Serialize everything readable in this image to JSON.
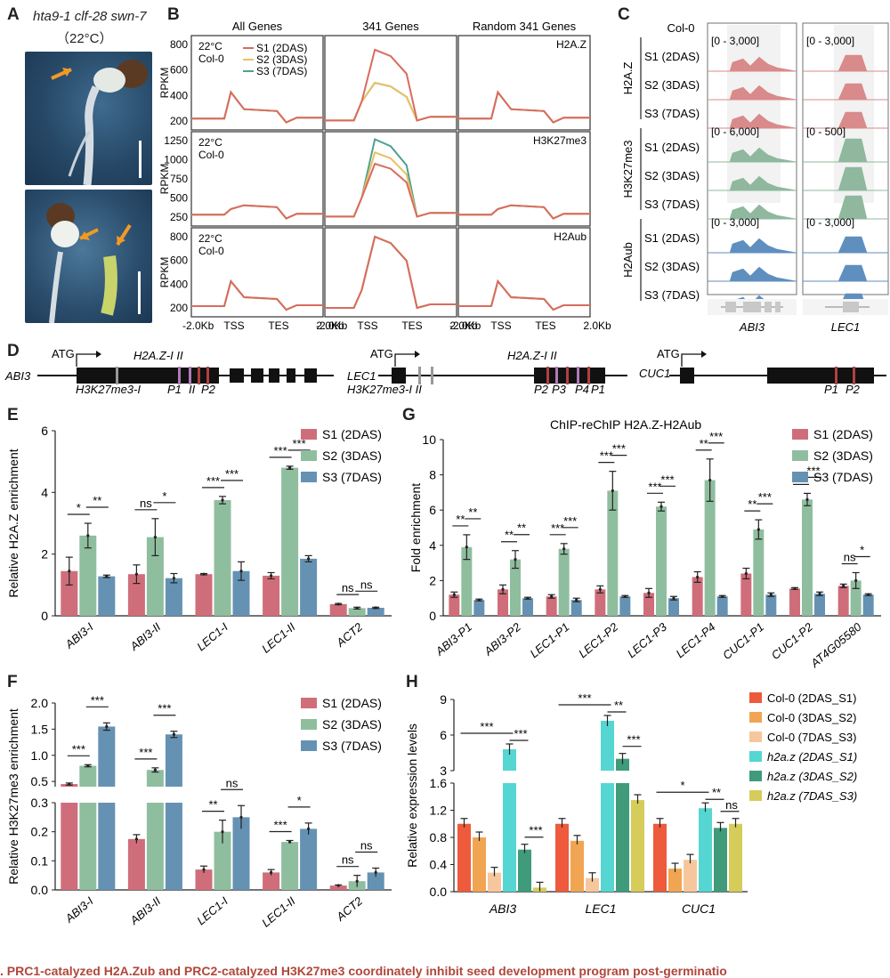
{
  "panelA": {
    "label": "A",
    "genotype": "hta9-1 clf-28 swn-7",
    "temp": "（22°C）"
  },
  "panelB": {
    "label": "B",
    "col_titles": [
      "All Genes",
      "341 Genes",
      "Random 341 Genes"
    ],
    "row_marks": [
      "H2A.Z",
      "H3K27me3",
      "H2Aub"
    ],
    "temp": "22°C",
    "genotype": "Col-0",
    "ylabel": "RPKM",
    "legend": [
      "S1 (2DAS)",
      "S2 (3DAS)",
      "S3 (7DAS)"
    ],
    "xticks": [
      "-2.0Kb",
      "TSS",
      "TES",
      "2.0Kb"
    ],
    "yticks": [
      [
        "800",
        "600",
        "400",
        "200"
      ],
      [
        "1250",
        "1000",
        "750",
        "500",
        "250"
      ],
      [
        "800",
        "600",
        "400",
        "200"
      ]
    ],
    "series_colors": [
      "#d96b5f",
      "#e9c163",
      "#4fa08f"
    ]
  },
  "panelC": {
    "label": "C",
    "top": "Col-0",
    "groups": [
      "H2A.Z",
      "H3K27me3",
      "H2Aub"
    ],
    "stages": [
      "S1 (2DAS)",
      "S2 (3DAS)",
      "S3 (7DAS)"
    ],
    "ranges_abi3": [
      "[0 - 3,000]",
      "[0 - 6,000]",
      "[0 - 3,000]"
    ],
    "ranges_lec1": [
      "[0 - 3,000]",
      "[0 - 500]",
      "[0 - 3,000]"
    ],
    "genes": [
      "ABI3",
      "LEC1"
    ],
    "colors": [
      "#d98a8a",
      "#8fb89e",
      "#5f8fbf"
    ]
  },
  "panelD": {
    "label": "D",
    "atg": "ATG",
    "abi3": {
      "name": "ABI3",
      "h2az": "H2A.Z-I II",
      "h3k": "H3K27me3-I",
      "p1": "P1",
      "ii": "II",
      "p2": "P2"
    },
    "lec1": {
      "name": "LEC1",
      "h2az": "H2A.Z-I  II",
      "h3k": "H3K27me3-I II",
      "p2": "P2",
      "p3": "P3",
      "p4": "P4",
      "p1": "P1"
    },
    "cuc1": {
      "name": "CUC1",
      "p1": "P1",
      "p2": "P2"
    }
  },
  "panelE": {
    "label": "E",
    "ylabel": "Relative H2A.Z enrichment",
    "legend": [
      "S1 (2DAS)",
      "S2 (3DAS)",
      "S3 (7DAS)"
    ],
    "chart_data": {
      "type": "bar",
      "categories": [
        "ABI3-I",
        "ABI3-II",
        "LEC1-I",
        "LEC1-II",
        "ACT2"
      ],
      "series": [
        {
          "name": "S1 (2DAS)",
          "values": [
            1.45,
            1.35,
            1.35,
            1.3,
            0.38
          ],
          "err": [
            0.45,
            0.3,
            0.02,
            0.1,
            0.02
          ]
        },
        {
          "name": "S2 (3DAS)",
          "values": [
            2.6,
            2.55,
            3.75,
            4.8,
            0.25
          ],
          "err": [
            0.4,
            0.6,
            0.12,
            0.05,
            0.03
          ]
        },
        {
          "name": "S3 (7DAS)",
          "values": [
            1.28,
            1.22,
            1.45,
            1.85,
            0.26
          ],
          "err": [
            0.04,
            0.15,
            0.3,
            0.1,
            0.02
          ]
        }
      ],
      "ylim": [
        0,
        6
      ],
      "yticks": [
        "0",
        "2",
        "4",
        "6"
      ],
      "sig": [
        [
          "*",
          "**"
        ],
        [
          "ns",
          "*"
        ],
        [
          "***",
          "***"
        ],
        [
          "***",
          "***"
        ],
        [
          "ns",
          "ns"
        ]
      ]
    }
  },
  "panelF": {
    "label": "F",
    "ylabel": "Relative H3K27me3 enrichment",
    "legend": [
      "S1 (2DAS)",
      "S2 (3DAS)",
      "S3 (7DAS)"
    ],
    "chart_data": {
      "type": "bar",
      "categories": [
        "ABI3-I",
        "ABI3-II",
        "LEC1-I",
        "LEC1-II",
        "ACT2"
      ],
      "series": [
        {
          "name": "S1 (2DAS)",
          "values": [
            0.45,
            0.175,
            0.07,
            0.06,
            0.015
          ],
          "err": [
            0.02,
            0.015,
            0.012,
            0.01,
            0.002
          ]
        },
        {
          "name": "S2 (3DAS)",
          "values": [
            0.8,
            0.72,
            0.2,
            0.165,
            0.03
          ],
          "err": [
            0.02,
            0.04,
            0.04,
            0.005,
            0.02
          ]
        },
        {
          "name": "S3 (7DAS)",
          "values": [
            1.55,
            1.4,
            0.25,
            0.21,
            0.06
          ],
          "err": [
            0.07,
            0.06,
            0.04,
            0.02,
            0.015
          ]
        }
      ],
      "yticks_top": [
        "2.0",
        "1.5",
        "1.0",
        "0.5"
      ],
      "yticks_bot": [
        "0.3",
        "0.2",
        "0.1",
        "0.0"
      ],
      "sig": [
        [
          "***",
          "***"
        ],
        [
          "***",
          "***"
        ],
        [
          "**",
          "ns"
        ],
        [
          "***",
          "*"
        ],
        [
          "ns",
          "ns"
        ]
      ]
    }
  },
  "panelG": {
    "label": "G",
    "title": "ChIP-reChIP H2A.Z-H2Aub",
    "ylabel": "Fold enrichment",
    "legend": [
      "S1 (2DAS)",
      "S2 (3DAS)",
      "S3 (7DAS)"
    ],
    "chart_data": {
      "type": "bar",
      "categories": [
        "ABI3-P1",
        "ABI3-P2",
        "LEC1-P1",
        "LEC1-P2",
        "LEC1-P3",
        "LEC1-P4",
        "CUC1-P1",
        "CUC1-P2",
        "AT4G05580"
      ],
      "series": [
        {
          "name": "S1 (2DAS)",
          "values": [
            1.2,
            1.5,
            1.1,
            1.5,
            1.3,
            2.2,
            2.4,
            1.55,
            1.7
          ],
          "err": [
            0.15,
            0.25,
            0.1,
            0.2,
            0.25,
            0.3,
            0.3,
            0.05,
            0.1
          ]
        },
        {
          "name": "S2 (3DAS)",
          "values": [
            3.9,
            3.2,
            3.8,
            7.1,
            6.2,
            7.7,
            4.9,
            6.6,
            2.0
          ],
          "err": [
            0.7,
            0.5,
            0.3,
            1.1,
            0.25,
            1.2,
            0.55,
            0.35,
            0.45
          ]
        },
        {
          "name": "S3 (7DAS)",
          "values": [
            0.9,
            1.0,
            0.9,
            1.1,
            1.0,
            1.1,
            1.2,
            1.25,
            1.2
          ],
          "err": [
            0.05,
            0.05,
            0.1,
            0.05,
            0.1,
            0.05,
            0.1,
            0.1,
            0.05
          ]
        }
      ],
      "ylim": [
        0,
        10
      ],
      "yticks": [
        "0",
        "2",
        "4",
        "6",
        "8",
        "10"
      ],
      "sig": [
        [
          "**",
          "**"
        ],
        [
          "**",
          "**"
        ],
        [
          "***",
          "***"
        ],
        [
          "***",
          "***"
        ],
        [
          "***",
          "***"
        ],
        [
          "**",
          "***"
        ],
        [
          "**",
          "***"
        ],
        [
          "***",
          "***"
        ],
        [
          "ns",
          "*"
        ]
      ]
    }
  },
  "panelH": {
    "label": "H",
    "ylabel": "Relative expression levels",
    "legend": [
      "Col-0 (2DAS_S1)",
      "Col-0 (3DAS_S2)",
      "Col-0 (7DAS_S3)",
      "h2a.z (2DAS_S1)",
      "h2a.z (3DAS_S2)",
      "h2a.z (7DAS_S3)"
    ],
    "colors": [
      "#ee5a3c",
      "#f1a552",
      "#f6c79d",
      "#55d6d2",
      "#3f9b7a",
      "#d6cc5a"
    ],
    "chart_data": {
      "type": "bar",
      "categories": [
        "ABI3",
        "LEC1",
        "CUC1"
      ],
      "series": [
        {
          "name": "Col-0 (2DAS_S1)",
          "values": [
            1.0,
            1.0,
            1.0
          ]
        },
        {
          "name": "Col-0 (3DAS_S2)",
          "values": [
            0.8,
            0.75,
            0.34
          ]
        },
        {
          "name": "Col-0 (7DAS_S3)",
          "values": [
            0.28,
            0.2,
            0.47
          ]
        },
        {
          "name": "h2a.z (2DAS_S1)",
          "values": [
            4.8,
            7.2,
            1.23
          ]
        },
        {
          "name": "h2a.z (3DAS_S2)",
          "values": [
            0.62,
            4.0,
            0.94
          ]
        },
        {
          "name": "h2a.z (7DAS_S3)",
          "values": [
            0.06,
            1.35,
            1.0
          ]
        }
      ],
      "yticks_top": [
        "9",
        "6",
        "3"
      ],
      "yticks_bot": [
        "1.6",
        "1.2",
        "0.8",
        "0.4",
        "0.0"
      ],
      "sig": [
        "***",
        "***",
        "***",
        "***",
        "**",
        "***",
        "*",
        "**",
        "ns"
      ]
    }
  },
  "caption": ". PRC1-catalyzed H2A.Zub and PRC2-catalyzed H3K27me3 coordinately inhibit seed development program post-germinatio"
}
